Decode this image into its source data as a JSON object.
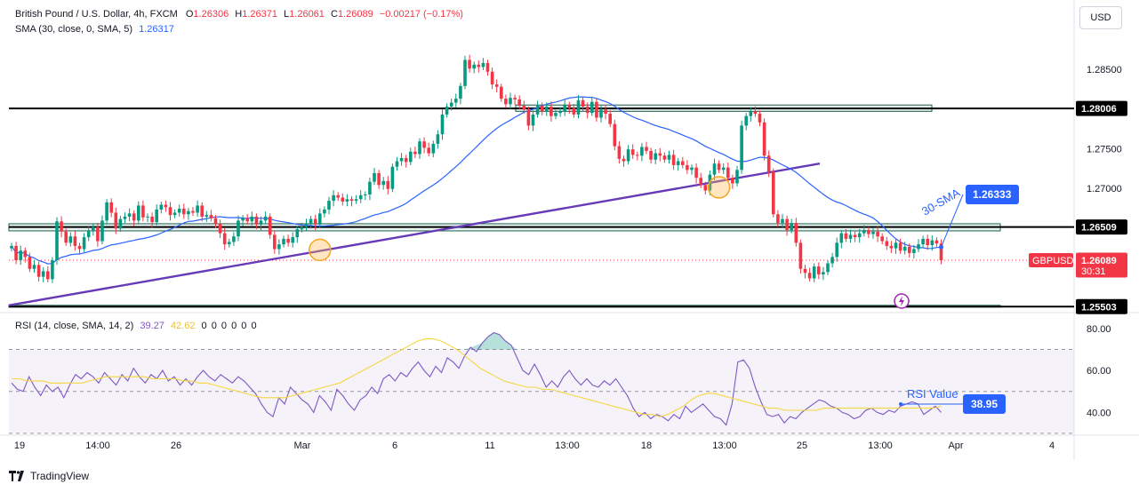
{
  "header": {
    "title": "British Pound / U.S. Dollar, 4h, FXCM",
    "ohlc": [
      {
        "label": "O",
        "value": "1.26306"
      },
      {
        "label": "H",
        "value": "1.26371"
      },
      {
        "label": "L",
        "value": "1.26061"
      },
      {
        "label": "C",
        "value": "1.26089"
      }
    ],
    "change": "−0.00217 (−0.17%)",
    "change_color": "#f23645",
    "sma_label": "SMA (30, close, 0, SMA, 5)",
    "sma_value": "1.26317",
    "sma_color": "#2962ff"
  },
  "currency_button": "USD",
  "branding": "TradingView",
  "colors": {
    "up": "#089981",
    "down": "#f23645",
    "sma": "#2962ff",
    "trendline": "#673ab7",
    "rsi": "#7e57c2",
    "rsi_ma": "#f5d73f",
    "zone_fill": "#e8f3ef",
    "zone_border": "#1b5e50",
    "level": "#000000",
    "annotation": "#2962ff"
  },
  "annotations": {
    "sma_text": "30-SMA",
    "sma_tag": "1.26333",
    "rsi_text": "RSI Value",
    "rsi_tag": "38.95"
  },
  "price_tags": {
    "level_high": "1.28006",
    "level_mid": "1.26509",
    "level_low": "1.25503",
    "symbol": "GBPUSD",
    "last": "1.26089",
    "countdown": "30:31"
  },
  "chart_data": [
    {
      "type": "candlestick",
      "symbol": "GBPUSD",
      "timeframe": "4h",
      "x_labels": [
        "19",
        "14:00",
        "26",
        "Mar",
        "6",
        "11",
        "13:00",
        "18",
        "13:00",
        "25",
        "13:00",
        "Apr",
        "4"
      ],
      "y_ticks": [
        1.27,
        1.275,
        1.285
      ],
      "y_tick_labels": [
        "1.27000",
        "1.27500",
        "1.28500"
      ],
      "ylim": [
        1.2545,
        1.2895
      ],
      "horizontal_levels": [
        1.28006,
        1.26509,
        1.25503
      ],
      "zones": [
        {
          "low": 1.2797,
          "high": 1.2805
        },
        {
          "low": 1.2646,
          "high": 1.2655
        },
        {
          "low": 1.25497,
          "high": 1.2552
        }
      ],
      "last_price": 1.26089,
      "trendline": [
        [
          0,
          1.2552
        ],
        [
          190,
          1.2731
        ]
      ],
      "closes": [
        1.2627,
        1.2609,
        1.2621,
        1.2613,
        1.2598,
        1.2603,
        1.2588,
        1.2595,
        1.2585,
        1.2609,
        1.2658,
        1.2645,
        1.2631,
        1.2639,
        1.2627,
        1.2623,
        1.2638,
        1.2646,
        1.2651,
        1.2633,
        1.2659,
        1.2682,
        1.2669,
        1.2649,
        1.2661,
        1.2664,
        1.2668,
        1.2659,
        1.2678,
        1.2663,
        1.2664,
        1.2657,
        1.2673,
        1.2679,
        1.2676,
        1.2666,
        1.2669,
        1.2674,
        1.2667,
        1.2671,
        1.2669,
        1.2678,
        1.2664,
        1.2666,
        1.2662,
        1.2655,
        1.2643,
        1.2629,
        1.2632,
        1.2639,
        1.2659,
        1.2662,
        1.2658,
        1.2664,
        1.2654,
        1.2659,
        1.2664,
        1.2641,
        1.2623,
        1.2629,
        1.2636,
        1.2631,
        1.2638,
        1.2648,
        1.2651,
        1.2655,
        1.2661,
        1.2654,
        1.2668,
        1.2673,
        1.2684,
        1.2691,
        1.2688,
        1.2683,
        1.2686,
        1.2684,
        1.2686,
        1.2691,
        1.2692,
        1.2708,
        1.2719,
        1.2704,
        1.2709,
        1.2699,
        1.2727,
        1.2734,
        1.2738,
        1.2733,
        1.2746,
        1.2743,
        1.2759,
        1.2751,
        1.2744,
        1.2756,
        1.2768,
        1.2793,
        1.2803,
        1.2808,
        1.2813,
        1.2829,
        1.2862,
        1.2851,
        1.2856,
        1.2853,
        1.2858,
        1.2847,
        1.2831,
        1.2828,
        1.2813,
        1.2806,
        1.2814,
        1.2812,
        1.2804,
        1.2799,
        1.2779,
        1.2793,
        1.2804,
        1.2797,
        1.2803,
        1.2791,
        1.2795,
        1.2797,
        1.2805,
        1.2801,
        1.2793,
        1.2811,
        1.2803,
        1.2795,
        1.2809,
        1.2789,
        1.2799,
        1.2794,
        1.2781,
        1.2753,
        1.2737,
        1.2734,
        1.2749,
        1.2742,
        1.2741,
        1.2752,
        1.2747,
        1.2736,
        1.2744,
        1.2741,
        1.2736,
        1.2742,
        1.2729,
        1.2734,
        1.2729,
        1.2723,
        1.2726,
        1.2713,
        1.2704,
        1.2697,
        1.2717,
        1.2731,
        1.2723,
        1.2726,
        1.2713,
        1.2706,
        1.2723,
        1.2779,
        1.2791,
        1.2797,
        1.2794,
        1.2783,
        1.2741,
        1.2721,
        1.2667,
        1.2656,
        1.2661,
        1.2647,
        1.2656,
        1.2631,
        1.2598,
        1.2593,
        1.2586,
        1.2601,
        1.2591,
        1.2594,
        1.2605,
        1.2613,
        1.2631,
        1.2643,
        1.2636,
        1.2641,
        1.2638,
        1.2643,
        1.2647,
        1.2642,
        1.2645,
        1.2639,
        1.2633,
        1.2627,
        1.2624,
        1.2631,
        1.2621,
        1.2626,
        1.2618,
        1.2623,
        1.2629,
        1.2636,
        1.2628,
        1.2634,
        1.263,
        1.26089
      ],
      "rsi_panel": {
        "label": "RSI (14, close, SMA, 14, 2)",
        "rsi_value": "39.27",
        "ma_value": "42.62",
        "extra_values": [
          "0",
          "0",
          "0",
          "0",
          "0",
          "0"
        ],
        "ylim": [
          30,
          85
        ],
        "y_ticks": [
          40,
          60,
          80
        ],
        "y_tick_labels": [
          "40.00",
          "60.00",
          "80.00"
        ],
        "band": [
          30,
          70
        ],
        "midline": 50,
        "rsi": [
          54,
          51,
          50,
          57,
          52,
          48,
          53,
          50,
          52,
          47,
          53,
          58,
          56,
          59,
          57,
          54,
          59,
          56,
          53,
          58,
          55,
          61,
          57,
          54,
          58,
          56,
          60,
          55,
          57,
          53,
          56,
          53,
          57,
          60,
          57,
          55,
          58,
          56,
          54,
          57,
          55,
          52,
          49,
          44,
          40,
          38,
          47,
          44,
          52,
          49,
          46,
          44,
          40,
          48,
          45,
          41,
          51,
          48,
          44,
          41,
          46,
          48,
          52,
          49,
          56,
          58,
          55,
          59,
          57,
          61,
          64,
          60,
          57,
          62,
          59,
          66,
          64,
          61,
          67,
          71,
          69,
          73,
          76,
          78,
          77,
          74,
          72,
          66,
          60,
          58,
          63,
          58,
          52,
          55,
          52,
          57,
          60,
          56,
          53,
          56,
          53,
          52,
          55,
          53,
          56,
          52,
          48,
          42,
          38,
          40,
          37,
          39,
          38,
          36,
          39,
          37,
          43,
          40,
          42,
          44,
          41,
          38,
          37,
          34,
          44,
          64,
          65,
          61,
          52,
          45,
          39,
          38,
          39,
          35,
          38,
          37,
          40,
          42,
          44,
          46,
          45,
          43,
          42,
          40,
          39,
          37,
          38,
          41,
          42,
          40,
          39,
          41,
          40,
          43,
          44,
          45,
          44,
          39,
          41,
          43,
          40
        ],
        "rsi_ma": [
          56,
          56,
          55,
          55,
          55,
          54,
          54,
          54,
          54,
          54,
          55,
          56,
          57,
          57,
          57,
          57,
          57,
          57,
          56,
          56,
          56,
          56,
          55,
          55,
          54,
          54,
          53,
          52,
          51,
          50,
          49,
          48,
          47,
          47,
          47,
          47,
          48,
          49,
          50,
          51,
          52,
          53,
          54,
          56,
          58,
          60,
          62,
          64,
          66,
          68,
          70,
          72,
          74,
          75,
          75,
          74,
          72,
          70,
          67,
          64,
          61,
          59,
          57,
          55,
          54,
          53,
          52,
          52,
          51,
          51,
          50,
          49,
          48,
          47,
          46,
          45,
          44,
          43,
          42,
          41,
          40,
          39,
          39,
          38,
          39,
          41,
          43,
          46,
          48,
          49,
          49,
          48,
          47,
          46,
          45,
          44,
          43,
          42,
          42,
          41,
          41,
          41,
          41,
          41,
          42,
          42,
          42,
          42,
          42,
          42,
          42,
          42,
          42,
          42,
          42,
          42,
          42,
          42,
          42,
          43
        ]
      }
    }
  ]
}
